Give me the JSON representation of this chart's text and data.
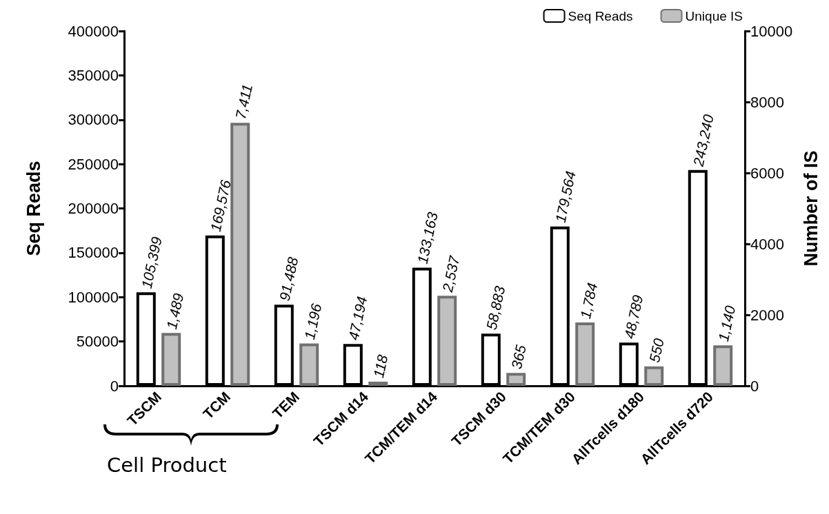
{
  "chart_data": {
    "type": "bar",
    "ylabel": "Seq Reads",
    "y2label": "Number of IS",
    "categories": [
      "TSCM",
      "TCM",
      "TEM",
      "TSCM d14",
      "TCM/TEM d14",
      "TSCM d30",
      "TCM/TEM d30",
      "AllTcells d180",
      "AllTcells d720"
    ],
    "series": [
      {
        "name": "Seq Reads",
        "color": "#ffffff",
        "values": [
          105399,
          169576,
          91488,
          47194,
          133163,
          58883,
          179564,
          48789,
          243240
        ],
        "value_labels": [
          "105,399",
          "169,576",
          "91,488",
          "47,194",
          "133,163",
          "58,883",
          "179,564",
          "48,789",
          "243,240"
        ]
      },
      {
        "name": "Unique IS",
        "color": "#c0c0c0",
        "axis": "y2",
        "values": [
          1489,
          7411,
          1196,
          118,
          2537,
          365,
          1784,
          550,
          1140
        ],
        "value_labels": [
          "1,489",
          "7,411",
          "1,196",
          "118",
          "2,537",
          "365",
          "1,784",
          "550",
          "1,140"
        ]
      }
    ],
    "ylim": [
      0,
      400000
    ],
    "yticks": [
      0,
      50000,
      100000,
      150000,
      200000,
      250000,
      300000,
      350000,
      400000
    ],
    "y2lim": [
      0,
      10000
    ],
    "y2ticks": [
      0,
      2000,
      4000,
      6000,
      8000,
      10000
    ],
    "grid": false,
    "legend": "top right",
    "annotations": [
      "Cell Product"
    ]
  }
}
